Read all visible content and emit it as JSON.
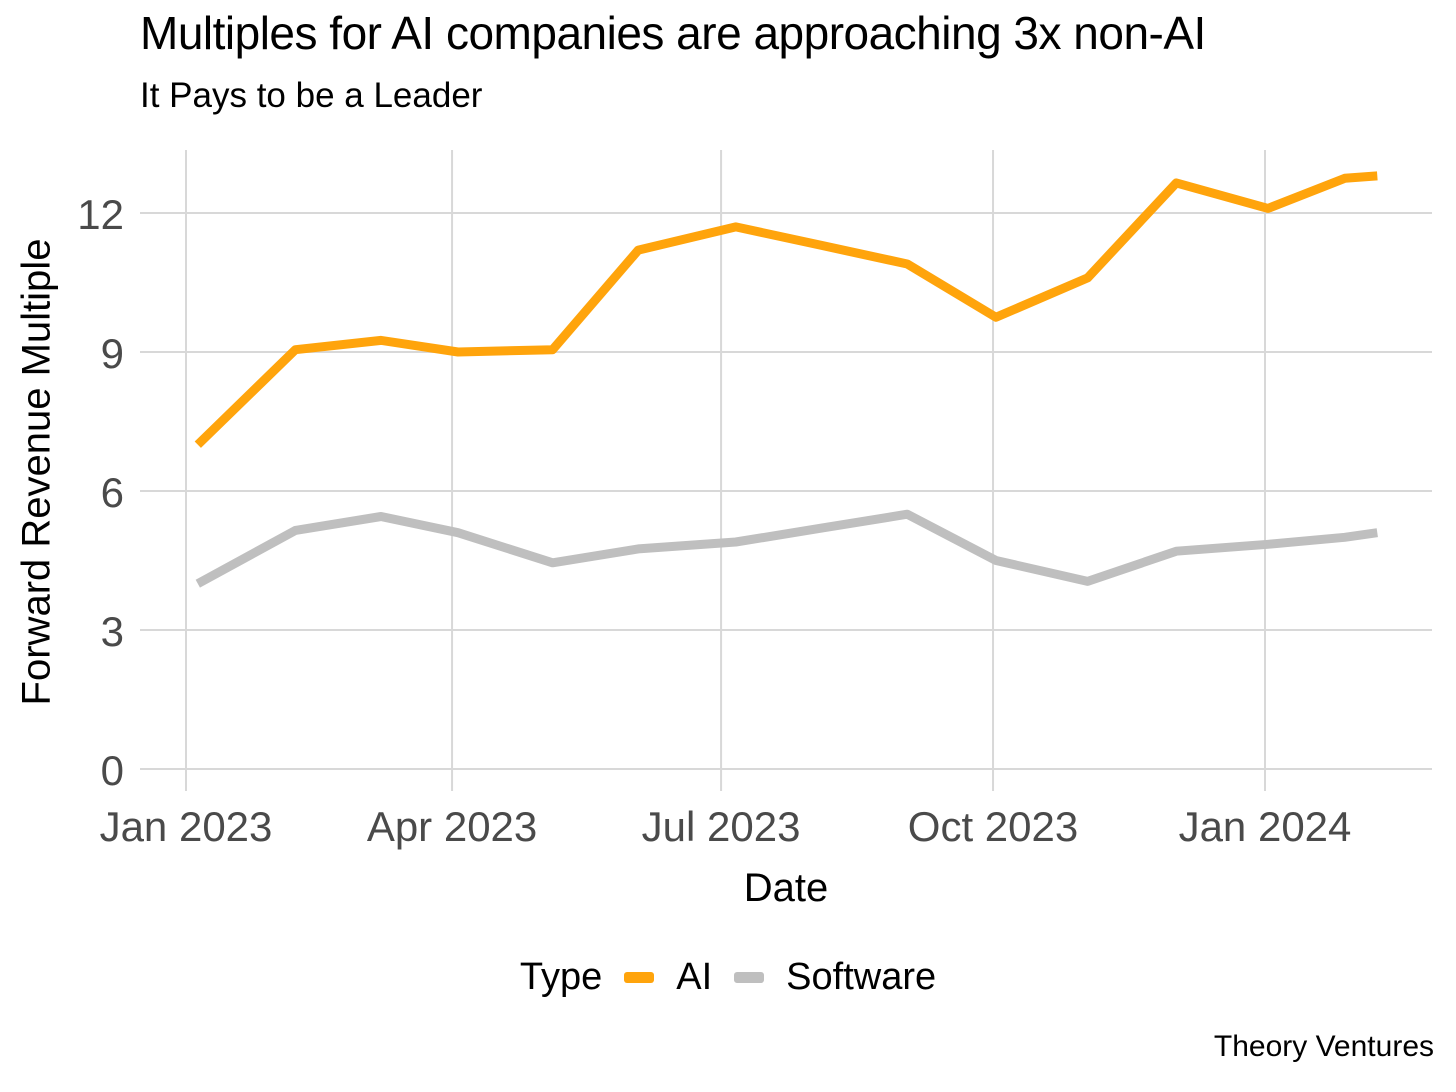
{
  "footer": {
    "credit": "Theory Ventures"
  },
  "chart_data": {
    "type": "line",
    "title": "Multiples for AI companies are approaching 3x non-AI",
    "subtitle": "It Pays to be a Leader",
    "xlabel": "Date",
    "ylabel": "Forward Revenue Multiple",
    "ylim": [
      0,
      13.4
    ],
    "yticks": [
      0,
      3,
      6,
      9,
      12
    ],
    "xticks": [
      {
        "label": "Jan 2023",
        "day": 0
      },
      {
        "label": "Apr 2023",
        "day": 90
      },
      {
        "label": "Jul 2023",
        "day": 181
      },
      {
        "label": "Oct 2023",
        "day": 273
      },
      {
        "label": "Jan 2024",
        "day": 365
      }
    ],
    "grid": true,
    "grid_color": "#D8D8D8",
    "axis_text_color": "#4A4A4A",
    "legend": {
      "title": "Type",
      "position": "bottom"
    },
    "series": [
      {
        "name": "AI",
        "color": "#FFA40C",
        "points": [
          {
            "date": "2023-01-05",
            "day": 4,
            "value": 7.0
          },
          {
            "date": "2023-02-07",
            "day": 37,
            "value": 9.05
          },
          {
            "date": "2023-03-08",
            "day": 66,
            "value": 9.25
          },
          {
            "date": "2023-04-03",
            "day": 92,
            "value": 9.0
          },
          {
            "date": "2023-05-05",
            "day": 124,
            "value": 9.05
          },
          {
            "date": "2023-06-03",
            "day": 153,
            "value": 11.2
          },
          {
            "date": "2023-07-06",
            "day": 186,
            "value": 11.7
          },
          {
            "date": "2023-08-04",
            "day": 215,
            "value": 11.3
          },
          {
            "date": "2023-09-02",
            "day": 244,
            "value": 10.9
          },
          {
            "date": "2023-10-02",
            "day": 274,
            "value": 9.75
          },
          {
            "date": "2023-11-02",
            "day": 305,
            "value": 10.6
          },
          {
            "date": "2023-12-02",
            "day": 335,
            "value": 12.65
          },
          {
            "date": "2024-01-02",
            "day": 366,
            "value": 12.1
          },
          {
            "date": "2024-01-28",
            "day": 392,
            "value": 12.75
          },
          {
            "date": "2024-02-08",
            "day": 403,
            "value": 12.8
          }
        ]
      },
      {
        "name": "Software",
        "color": "#BFBFBF",
        "points": [
          {
            "date": "2023-01-05",
            "day": 4,
            "value": 4.0
          },
          {
            "date": "2023-02-07",
            "day": 37,
            "value": 5.15
          },
          {
            "date": "2023-03-08",
            "day": 66,
            "value": 5.45
          },
          {
            "date": "2023-04-03",
            "day": 92,
            "value": 5.1
          },
          {
            "date": "2023-05-05",
            "day": 124,
            "value": 4.45
          },
          {
            "date": "2023-06-03",
            "day": 153,
            "value": 4.75
          },
          {
            "date": "2023-07-06",
            "day": 186,
            "value": 4.9
          },
          {
            "date": "2023-08-04",
            "day": 215,
            "value": 5.2
          },
          {
            "date": "2023-09-02",
            "day": 244,
            "value": 5.5
          },
          {
            "date": "2023-10-02",
            "day": 274,
            "value": 4.5
          },
          {
            "date": "2023-11-02",
            "day": 305,
            "value": 4.05
          },
          {
            "date": "2023-12-02",
            "day": 335,
            "value": 4.7
          },
          {
            "date": "2024-01-02",
            "day": 366,
            "value": 4.85
          },
          {
            "date": "2024-01-28",
            "day": 392,
            "value": 5.0
          },
          {
            "date": "2024-02-08",
            "day": 403,
            "value": 5.1
          }
        ]
      }
    ]
  }
}
